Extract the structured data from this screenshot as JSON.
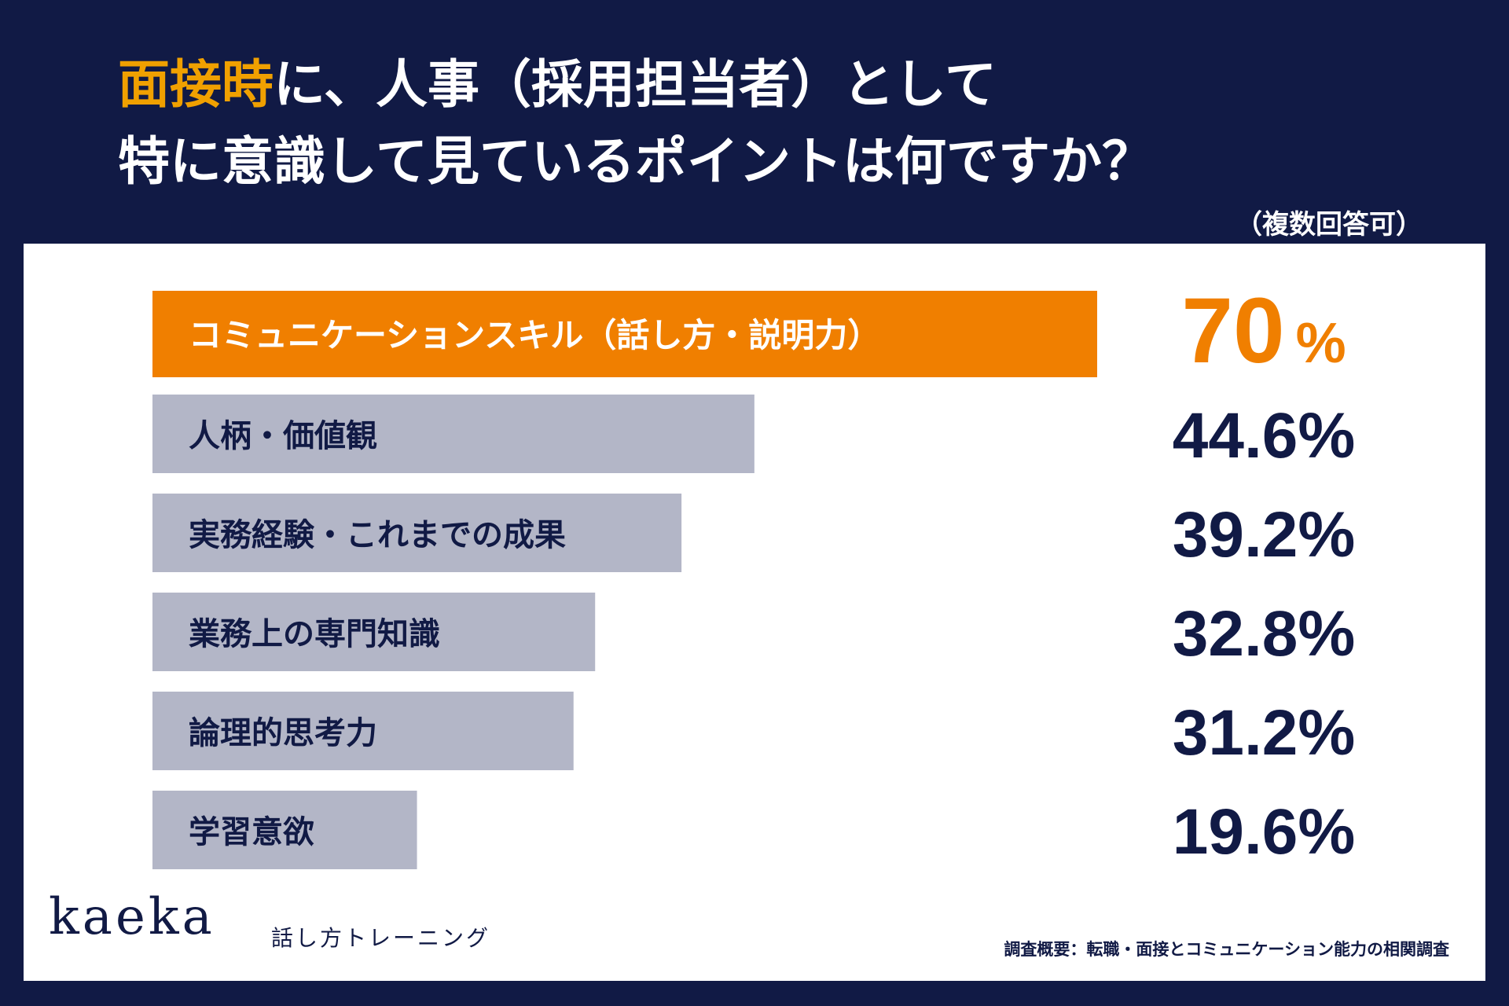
{
  "header": {
    "title_highlight": "面接時",
    "title_line1_rest": "に、人事（採用担当者）として",
    "title_line2": "特に意識して見ているポイントは何ですか？",
    "note": "（複数回答可）"
  },
  "chart_data": {
    "type": "bar",
    "orientation": "horizontal",
    "categories": [
      "コミュニケーションスキル（話し方・説明力）",
      "人柄・価値観",
      "実務経験・これまでの成果",
      "業務上の専門知識",
      "論理的思考力",
      "学習意欲"
    ],
    "values": [
      70,
      44.6,
      39.2,
      32.8,
      31.2,
      19.6
    ],
    "value_labels": [
      "70",
      "44.6%",
      "39.2%",
      "32.8%",
      "31.2%",
      "19.6%"
    ],
    "top_value_unit": "%",
    "unit": "%",
    "xlim": [
      0,
      100
    ],
    "colors": {
      "highlight": "#f07f00",
      "bar": "#b3b6c7",
      "highlight_text": "#ffffff",
      "bar_text": "#111a45",
      "value_text": "#111a45",
      "highlight_value_text": "#f07f00"
    }
  },
  "footer": {
    "brand": "kaeka",
    "brand_sub": "話し方トレーニング",
    "survey": "調査概要：転職・面接とコミュニケーション能力の相関調査"
  }
}
